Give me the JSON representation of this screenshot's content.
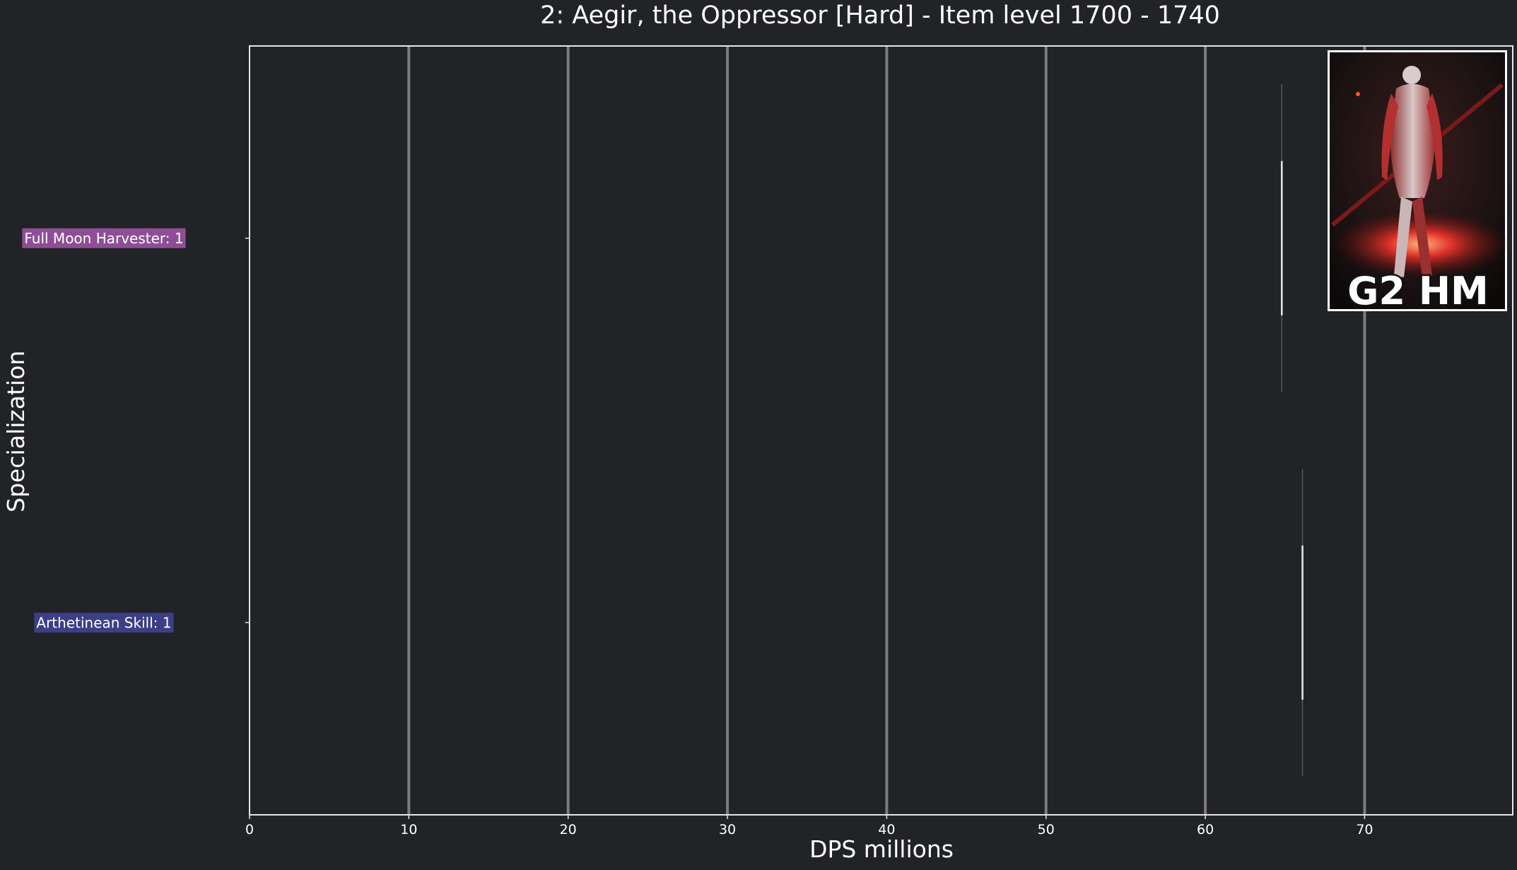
{
  "chart_data": {
    "type": "box",
    "title": "2: Aegir, the Oppressor [Hard] - Item level 1700 - 1740",
    "xlabel": "DPS millions",
    "ylabel": "Specialization",
    "xlim": [
      0,
      79.3
    ],
    "x_ticks": [
      0,
      10,
      20,
      30,
      40,
      50,
      60,
      70
    ],
    "x_tick_labels": [
      "0",
      "10",
      "20",
      "30",
      "40",
      "50",
      "60",
      "70"
    ],
    "grid": "vertical",
    "orientation": "horizontal",
    "categories": [
      "Full Moon Harvester: 1",
      "Arthetinean Skill: 1"
    ],
    "series": [
      {
        "category": "Full Moon Harvester: 1",
        "label_color": "#8e4e96",
        "whisker_low": 64.8,
        "q1": 64.8,
        "median": 64.8,
        "q3": 64.8,
        "whisker_high": 64.8
      },
      {
        "category": "Arthetinean Skill: 1",
        "label_color": "#3c3f86",
        "whisker_low": 66.1,
        "q1": 66.1,
        "median": 66.1,
        "q3": 66.1,
        "whisker_high": 66.1
      }
    ],
    "inset": {
      "caption": "G2 HM",
      "placement": "top-right",
      "icon": "boss-portrait-image"
    },
    "colors": {
      "background": "#212327",
      "grid": "#9a9a9a",
      "axis": "#e6e6e6",
      "text": "#ffffff"
    }
  }
}
